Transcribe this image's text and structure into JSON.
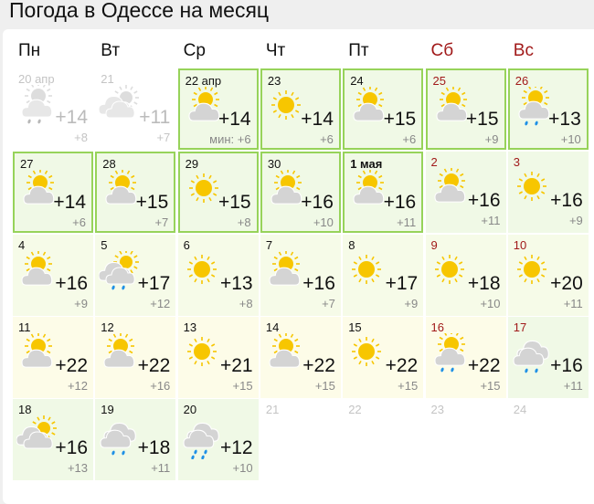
{
  "title": "Погода в Одессе на месяц",
  "weekdays": [
    "Пн",
    "Вт",
    "Ср",
    "Чт",
    "Пт",
    "Сб",
    "Вс"
  ],
  "min_label": "мин:",
  "colors": {
    "border": "#97d35a",
    "weekend": "#a11a1a",
    "sun": "#f7c600",
    "cloud": "#d4d4d4",
    "rain": "#1e90e6"
  },
  "days": [
    {
      "date": "20 апр",
      "max": "+14",
      "min": "+8",
      "icon": "partly-cloudy-rain",
      "state": "past"
    },
    {
      "date": "21",
      "max": "+11",
      "min": "+7",
      "icon": "cloudy-sun",
      "state": "past"
    },
    {
      "date": "22 апр",
      "max": "+14",
      "min": "+6",
      "icon": "partly-cloudy",
      "bg": "green",
      "border": true,
      "today": true
    },
    {
      "date": "23",
      "max": "+14",
      "min": "+6",
      "icon": "sun",
      "bg": "green",
      "border": true
    },
    {
      "date": "24",
      "max": "+15",
      "min": "+6",
      "icon": "partly-cloudy",
      "bg": "green",
      "border": true
    },
    {
      "date": "25",
      "max": "+15",
      "min": "+9",
      "icon": "partly-cloudy",
      "bg": "green",
      "border": true,
      "weekend": true
    },
    {
      "date": "26",
      "max": "+13",
      "min": "+10",
      "icon": "partly-cloudy-rain",
      "bg": "green",
      "border": true,
      "weekend": true
    },
    {
      "date": "27",
      "max": "+14",
      "min": "+6",
      "icon": "partly-cloudy",
      "bg": "green",
      "border": true
    },
    {
      "date": "28",
      "max": "+15",
      "min": "+7",
      "icon": "partly-cloudy",
      "bg": "green",
      "border": true
    },
    {
      "date": "29",
      "max": "+15",
      "min": "+8",
      "icon": "sun",
      "bg": "green",
      "border": true
    },
    {
      "date": "30",
      "max": "+16",
      "min": "+10",
      "icon": "partly-cloudy",
      "bg": "green",
      "border": true
    },
    {
      "date": "1 мая",
      "max": "+16",
      "min": "+11",
      "icon": "partly-cloudy",
      "bg": "green",
      "border": true,
      "bold": true
    },
    {
      "date": "2",
      "max": "+16",
      "min": "+11",
      "icon": "partly-cloudy",
      "bg": "green",
      "weekend": true
    },
    {
      "date": "3",
      "max": "+16",
      "min": "+9",
      "icon": "sun",
      "bg": "green",
      "weekend": true
    },
    {
      "date": "4",
      "max": "+16",
      "min": "+9",
      "icon": "partly-cloudy",
      "bg": "lime"
    },
    {
      "date": "5",
      "max": "+17",
      "min": "+12",
      "icon": "cloudy-sun-rain",
      "bg": "lime"
    },
    {
      "date": "6",
      "max": "+13",
      "min": "+8",
      "icon": "sun",
      "bg": "lime"
    },
    {
      "date": "7",
      "max": "+16",
      "min": "+7",
      "icon": "partly-cloudy",
      "bg": "lime"
    },
    {
      "date": "8",
      "max": "+17",
      "min": "+9",
      "icon": "sun",
      "bg": "lime"
    },
    {
      "date": "9",
      "max": "+18",
      "min": "+10",
      "icon": "sun",
      "bg": "lime",
      "weekend": true
    },
    {
      "date": "10",
      "max": "+20",
      "min": "+11",
      "icon": "sun",
      "bg": "lime",
      "weekend": true
    },
    {
      "date": "11",
      "max": "+22",
      "min": "+12",
      "icon": "partly-cloudy",
      "bg": "yellow"
    },
    {
      "date": "12",
      "max": "+22",
      "min": "+16",
      "icon": "partly-cloudy",
      "bg": "yellow"
    },
    {
      "date": "13",
      "max": "+21",
      "min": "+15",
      "icon": "sun",
      "bg": "yellow"
    },
    {
      "date": "14",
      "max": "+22",
      "min": "+15",
      "icon": "partly-cloudy",
      "bg": "yellow"
    },
    {
      "date": "15",
      "max": "+22",
      "min": "+15",
      "icon": "sun",
      "bg": "yellow"
    },
    {
      "date": "16",
      "max": "+22",
      "min": "+15",
      "icon": "partly-cloudy-rain",
      "bg": "yellow",
      "weekend": true
    },
    {
      "date": "17",
      "max": "+16",
      "min": "+11",
      "icon": "overcast-rain",
      "bg": "green",
      "weekend": true
    },
    {
      "date": "18",
      "max": "+16",
      "min": "+13",
      "icon": "cloudy-sun",
      "bg": "green"
    },
    {
      "date": "19",
      "max": "+18",
      "min": "+11",
      "icon": "overcast-rain",
      "bg": "green"
    },
    {
      "date": "20",
      "max": "+12",
      "min": "+10",
      "icon": "overcast-heavy-rain",
      "bg": "green"
    },
    {
      "date": "21",
      "state": "empty"
    },
    {
      "date": "22",
      "state": "empty"
    },
    {
      "date": "23",
      "state": "empty"
    },
    {
      "date": "24",
      "state": "empty"
    }
  ]
}
